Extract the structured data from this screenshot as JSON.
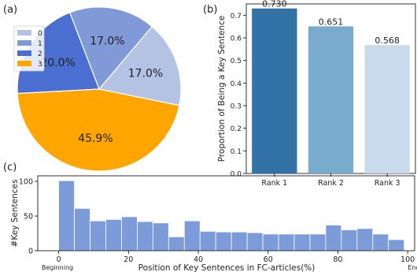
{
  "chart_data": [
    {
      "panel_label": "(a)",
      "type": "pie",
      "labels": [
        "0",
        "1",
        "2",
        "3"
      ],
      "values": [
        17.0,
        17.0,
        20.0,
        45.9
      ],
      "value_labels": [
        "17.0%",
        "17.0%",
        "20.0%",
        "45.9%"
      ],
      "colors": [
        "#b4c3e3",
        "#7f9ad6",
        "#4a6fd0",
        "#ffa500"
      ],
      "legend": "top-left"
    },
    {
      "panel_label": "(b)",
      "type": "bar",
      "categories": [
        "Rank 1",
        "Rank 2",
        "Rank 3"
      ],
      "values": [
        0.73,
        0.651,
        0.568
      ],
      "value_labels": [
        "0.730",
        "0.651",
        "0.568"
      ],
      "colors": [
        "#3272a6",
        "#79abcf",
        "#c8dbec"
      ],
      "ylabel": "Proportion of Being a Key Sentence",
      "ylim": [
        0,
        0.75
      ],
      "yticks": [
        0.0,
        0.1,
        0.2,
        0.3,
        0.4,
        0.5,
        0.6,
        0.7
      ]
    },
    {
      "panel_label": "(c)",
      "type": "bar",
      "bin_edges": [
        0,
        4.5,
        9,
        13.5,
        18,
        22.5,
        27,
        31.5,
        36,
        40.5,
        45,
        49.5,
        54,
        58.5,
        63,
        67.5,
        72,
        76.5,
        81,
        85.5,
        90,
        94.5,
        99
      ],
      "values": [
        101,
        61,
        43,
        45,
        49,
        42,
        40,
        20,
        43,
        28,
        27,
        27,
        26,
        24,
        24,
        24,
        24,
        37,
        30,
        32,
        24,
        16
      ],
      "color": "#7b9bd9",
      "xlabel": "Position of Key Sentences in FC-articles(%)",
      "ylabel": "#Key Sentences",
      "xlim": [
        -6,
        102
      ],
      "ylim": [
        0,
        108
      ],
      "xticks": [
        0,
        20,
        40,
        60,
        80,
        100
      ],
      "yticks": [
        0,
        50,
        100
      ],
      "annotations": [
        "Beginning",
        "End"
      ]
    }
  ]
}
